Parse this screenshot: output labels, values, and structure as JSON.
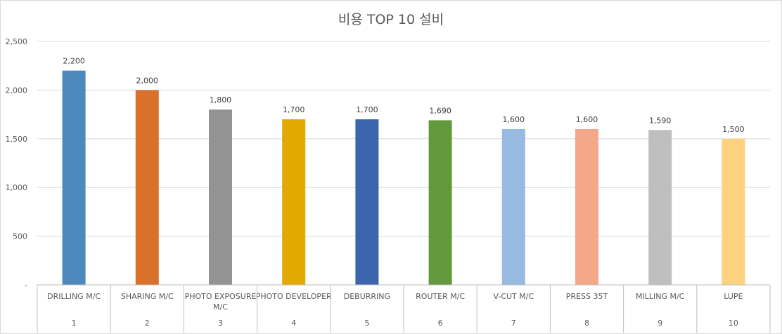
{
  "chart_data": {
    "type": "bar",
    "title": "비용 TOP 10 설비",
    "xlabel": "",
    "ylabel": "",
    "ylim": [
      0,
      2500
    ],
    "yticks": [
      {
        "value": 0,
        "label": "-"
      },
      {
        "value": 500,
        "label": "500"
      },
      {
        "value": 1000,
        "label": "1,000"
      },
      {
        "value": 1500,
        "label": "1,500"
      },
      {
        "value": 2000,
        "label": "2,000"
      },
      {
        "value": 2500,
        "label": "2,500"
      }
    ],
    "grid": true,
    "legend": "none",
    "categories": [
      {
        "name": [
          "DRILLING M/C"
        ],
        "rank": "1"
      },
      {
        "name": [
          "SHARING M/C"
        ],
        "rank": "2"
      },
      {
        "name": [
          "PHOTO EXPOSURE",
          "M/C"
        ],
        "rank": "3"
      },
      {
        "name": [
          "PHOTO DEVELOPER"
        ],
        "rank": "4"
      },
      {
        "name": [
          "DEBURRING"
        ],
        "rank": "5"
      },
      {
        "name": [
          "ROUTER M/C"
        ],
        "rank": "6"
      },
      {
        "name": [
          "V-CUT M/C"
        ],
        "rank": "7"
      },
      {
        "name": [
          "PRESS 35T"
        ],
        "rank": "8"
      },
      {
        "name": [
          "MILLING M/C"
        ],
        "rank": "9"
      },
      {
        "name": [
          "LUPE"
        ],
        "rank": "10"
      }
    ],
    "values": [
      2200,
      2000,
      1800,
      1700,
      1700,
      1690,
      1600,
      1600,
      1590,
      1500
    ],
    "value_labels": [
      "2,200",
      "2,000",
      "1,800",
      "1,700",
      "1,700",
      "1,690",
      "1,600",
      "1,600",
      "1,590",
      "1,500"
    ],
    "colors": [
      "#4e89be",
      "#d9712b",
      "#939393",
      "#e2aa00",
      "#3b66ae",
      "#62993a",
      "#98b9e0",
      "#f2a889",
      "#bfbfbf",
      "#ffd27f"
    ],
    "axis_color": "#bfbfbf",
    "grid_color": "#d9d9d9"
  }
}
